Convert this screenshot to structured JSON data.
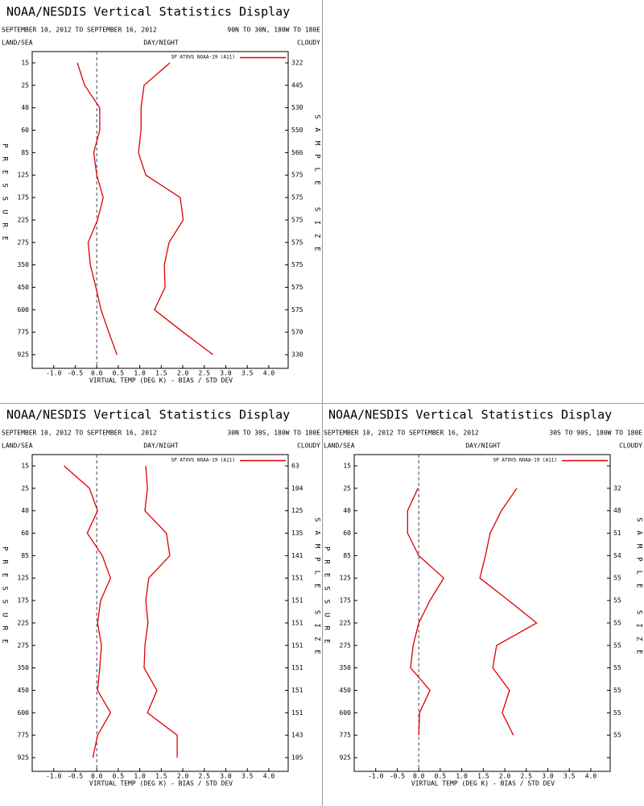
{
  "chart_data": [
    {
      "type": "line",
      "title": "NOAA/NESDIS Vertical Statistics Display",
      "subtitle": "SEPTEMBER 10, 2012 TO SEPTEMBER 16, 2012",
      "region": "90N TO 30N, 180W TO 180E",
      "land_sea": "LAND/SEA",
      "day_night": "DAY/NIGHT",
      "cloudy": "CLOUDY",
      "ylabel": "PRESSURE",
      "y2label": "SAMPLE SIZE",
      "xlabel": "VIRTUAL TEMP (DEG K) - BIAS / STD DEV",
      "legend": "SP ATOVS NOAA-19 (A11)",
      "categories": [
        "15",
        "25",
        "40",
        "60",
        "85",
        "125",
        "175",
        "225",
        "275",
        "350",
        "450",
        "600",
        "775",
        "925"
      ],
      "series": [
        {
          "color": "#dd0000",
          "values": [
            -0.45,
            -0.28,
            0.07,
            0.07,
            -0.07,
            0,
            0.15,
            0.02,
            -0.2,
            -0.15,
            -0.02,
            0.1,
            0.28,
            0.47
          ]
        },
        {
          "color": "#dd0000",
          "values": [
            1.7,
            1.1,
            1.03,
            1.03,
            0.97,
            1.14,
            1.94,
            2.01,
            1.68,
            1.57,
            1.59,
            1.34,
            2.01,
            2.7
          ]
        }
      ],
      "sample_size": [
        322,
        445,
        530,
        550,
        566,
        575,
        575,
        575,
        575,
        575,
        575,
        575,
        570,
        330
      ],
      "xlim": [
        -1.5,
        4.45
      ],
      "xticks": [
        {
          "value": -1,
          "label": "-1.0"
        },
        -0.5,
        {
          "value": 0,
          "label": "0.0"
        },
        0.5,
        {
          "value": 1,
          "label": "1.0"
        },
        1.5,
        {
          "value": 2,
          "label": "2.0"
        },
        2.5,
        {
          "value": 3,
          "label": "3.0"
        },
        3.5,
        {
          "value": 4,
          "label": "4.0"
        }
      ]
    },
    {
      "type": "line",
      "title": "NOAA/NESDIS Vertical Statistics Display",
      "subtitle": "SEPTEMBER 10, 2012 TO SEPTEMBER 16, 2012",
      "region": "30N TO 30S, 180W TO 180E",
      "land_sea": "LAND/SEA",
      "day_night": "DAY/NIGHT",
      "cloudy": "CLOUDY",
      "ylabel": "PRESSURE",
      "y2label": "SAMPLE SIZE",
      "xlabel": "VIRTUAL TEMP (DEG K) - BIAS / STD DEV",
      "legend": "SP ATOVS NOAA-19 (A11)",
      "categories": [
        "15",
        "25",
        "40",
        "60",
        "85",
        "125",
        "175",
        "225",
        "275",
        "350",
        "450",
        "600",
        "775",
        "925"
      ],
      "series": [
        {
          "color": "#dd0000",
          "values": [
            -0.76,
            -0.17,
            0.02,
            -0.22,
            0.13,
            0.32,
            0.09,
            0.02,
            0.11,
            0.07,
            0.02,
            0.32,
            0.02,
            -0.09
          ]
        },
        {
          "color": "#dd0000",
          "values": [
            1.14,
            1.18,
            1.12,
            1.62,
            1.7,
            1.21,
            1.14,
            1.19,
            1.12,
            1.1,
            1.4,
            1.18,
            1.87,
            1.87
          ]
        }
      ],
      "sample_size": [
        63,
        104,
        125,
        135,
        141,
        151,
        151,
        151,
        151,
        151,
        151,
        151,
        143,
        105
      ],
      "xlim": [
        -1.5,
        4.45
      ],
      "xticks": [
        {
          "value": -1,
          "label": "-1.0"
        },
        -0.5,
        {
          "value": 0,
          "label": "0.0"
        },
        0.5,
        {
          "value": 1,
          "label": "1.0"
        },
        1.5,
        {
          "value": 2,
          "label": "2.0"
        },
        2.5,
        {
          "value": 3,
          "label": "3.0"
        },
        3.5,
        {
          "value": 4,
          "label": "4.0"
        }
      ]
    },
    {
      "type": "line",
      "title": "NOAA/NESDIS Vertical Statistics Display",
      "subtitle": "SEPTEMBER 10, 2012 TO SEPTEMBER 16, 2012",
      "region": "30S TO 90S, 180W TO 180E",
      "land_sea": "LAND/SEA",
      "day_night": "DAY/NIGHT",
      "cloudy": "CLOUDY",
      "ylabel": "PRESSURE",
      "y2label": "SAMPLE SIZE",
      "xlabel": "VIRTUAL TEMP (DEG K) - BIAS / STD DEV",
      "legend": "SP ATOVS NOAA-19 (A11)",
      "categories": [
        "15",
        "25",
        "40",
        "60",
        "85",
        "125",
        "175",
        "225",
        "275",
        "350",
        "450",
        "600",
        "775",
        "925"
      ],
      "series": [
        {
          "color": "#dd0000",
          "values": [
            null,
            -0.02,
            -0.26,
            -0.26,
            0,
            0.58,
            0.26,
            0,
            -0.13,
            -0.19,
            0.26,
            0.02,
            0,
            null
          ]
        },
        {
          "color": "#dd0000",
          "values": [
            null,
            2.28,
            1.92,
            1.66,
            1.55,
            1.42,
            2.09,
            2.74,
            1.81,
            1.72,
            2.11,
            1.94,
            2.2,
            null
          ]
        }
      ],
      "sample_size": [
        null,
        32,
        48,
        51,
        54,
        55,
        55,
        55,
        55,
        55,
        55,
        55,
        55,
        null
      ],
      "xlim": [
        -1.5,
        4.45
      ],
      "xticks": [
        {
          "value": -1,
          "label": "-1.0"
        },
        -0.5,
        {
          "value": 0,
          "label": "0.0"
        },
        0.5,
        {
          "value": 1,
          "label": "1.0"
        },
        1.5,
        {
          "value": 2,
          "label": "2.0"
        },
        2.5,
        {
          "value": 3,
          "label": "3.0"
        },
        3.5,
        {
          "value": 4,
          "label": "4.0"
        }
      ]
    }
  ]
}
